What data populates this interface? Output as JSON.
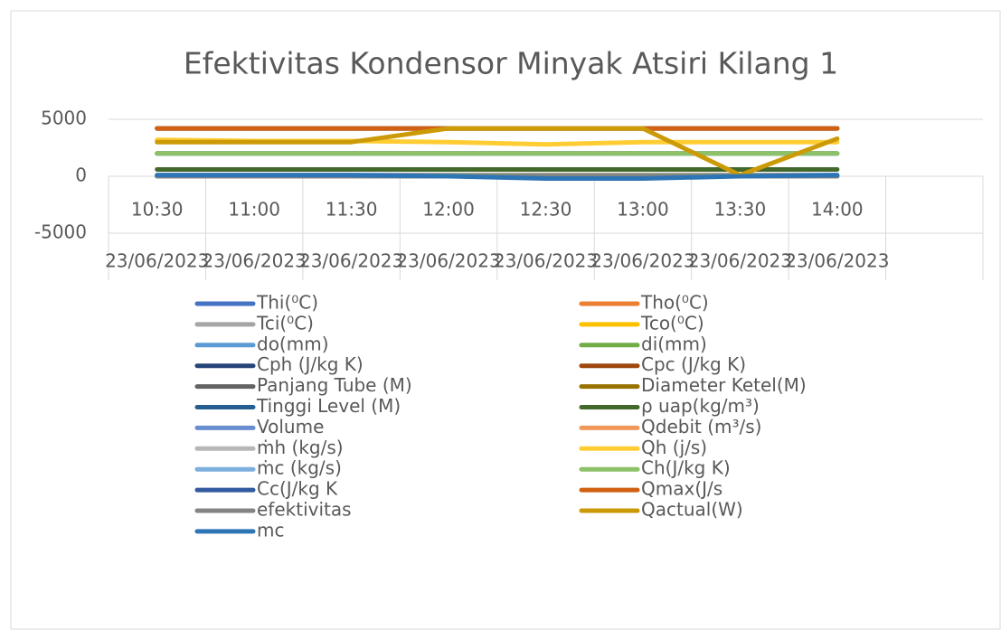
{
  "chart_data": {
    "type": "line",
    "title": "Efektivitas Kondensor  Minyak Atsiri Kilang 1",
    "categories": [
      "10:30",
      "11:00",
      "11:30",
      "12:00",
      "12:30",
      "13:00",
      "13:30",
      "14:00",
      null
    ],
    "category_groups": [
      "23/06/2023",
      "23/06/2023",
      "23/06/2023",
      "23/06/2023",
      "23/06/2023",
      "23/06/2023",
      "23/06/2023",
      "23/06/2023",
      null
    ],
    "ylim": [
      -5000,
      5000
    ],
    "yticks": [
      -5000,
      0,
      5000
    ],
    "grid": true,
    "legend": "bottom",
    "series": [
      {
        "name": "Thi(⁰C)",
        "color": "#4472c4",
        "values": [
          95,
          95,
          95,
          95,
          95,
          95,
          95,
          95,
          null
        ]
      },
      {
        "name": "Tho(⁰C)",
        "color": "#ed7d31",
        "values": [
          60,
          60,
          60,
          60,
          60,
          60,
          60,
          60,
          null
        ]
      },
      {
        "name": "Tci(⁰C)",
        "color": "#a5a5a5",
        "values": [
          30,
          30,
          30,
          30,
          30,
          30,
          30,
          30,
          null
        ]
      },
      {
        "name": "Tco(⁰C)",
        "color": "#ffc000",
        "values": [
          45,
          45,
          45,
          45,
          45,
          45,
          45,
          45,
          null
        ]
      },
      {
        "name": "do(mm)",
        "color": "#5b9bd5",
        "values": [
          25,
          25,
          25,
          25,
          25,
          25,
          25,
          25,
          null
        ]
      },
      {
        "name": "di(mm)",
        "color": "#70ad47",
        "values": [
          22,
          22,
          22,
          22,
          22,
          22,
          22,
          22,
          null
        ]
      },
      {
        "name": "Cph (J/kg K)",
        "color": "#264478",
        "values": [
          2000,
          2000,
          2000,
          2000,
          2000,
          2000,
          2000,
          2000,
          null
        ]
      },
      {
        "name": "Cpc (J/kg K)",
        "color": "#9e480e",
        "values": [
          4200,
          4200,
          4200,
          4200,
          4200,
          4200,
          4200,
          4200,
          null
        ]
      },
      {
        "name": "Panjang Tube (M)",
        "color": "#636363",
        "values": [
          2,
          2,
          2,
          2,
          2,
          2,
          2,
          2,
          null
        ]
      },
      {
        "name": "Diameter Ketel(M)",
        "color": "#997300",
        "values": [
          1,
          1,
          1,
          1,
          1,
          1,
          1,
          1,
          null
        ]
      },
      {
        "name": "Tinggi Level (M)",
        "color": "#255e91",
        "values": [
          1.5,
          1.5,
          1.5,
          1.5,
          1.5,
          1.5,
          1.5,
          1.5,
          null
        ]
      },
      {
        "name": "ρ uap(kg/m³)",
        "color": "#43682b",
        "values": [
          600,
          600,
          600,
          600,
          600,
          600,
          600,
          600,
          null
        ]
      },
      {
        "name": "Volume",
        "color": "#698ed0",
        "values": [
          2,
          2,
          2,
          2,
          2,
          2,
          2,
          2,
          null
        ]
      },
      {
        "name": "Qdebit (m³/s)",
        "color": "#f1975a",
        "values": [
          0,
          0,
          0,
          0,
          0,
          0,
          0,
          0,
          null
        ]
      },
      {
        "name": "ṁh (kg/s)",
        "color": "#b7b7b7",
        "values": [
          0,
          0,
          0,
          0,
          0,
          0,
          0,
          0,
          null
        ]
      },
      {
        "name": "Qh (j/s)",
        "color": "#ffcd33",
        "values": [
          3200,
          3100,
          3100,
          3000,
          2800,
          3000,
          3000,
          3000,
          null
        ]
      },
      {
        "name": "ṁc (kg/s)",
        "color": "#7cafdd",
        "values": [
          0,
          0,
          0,
          0,
          0,
          0,
          0,
          0,
          null
        ]
      },
      {
        "name": "Ch(J/kg K)",
        "color": "#8cc168",
        "values": [
          2000,
          2000,
          2000,
          2000,
          2000,
          2000,
          2000,
          2000,
          null
        ]
      },
      {
        "name": "Cc(J/kg K",
        "color": "#335aa1",
        "values": [
          4200,
          4200,
          4200,
          4200,
          4200,
          4200,
          4200,
          4200,
          null
        ]
      },
      {
        "name": "Qmax(J/s",
        "color": "#d26012",
        "values": [
          4200,
          4200,
          4200,
          4200,
          4200,
          4200,
          4200,
          4200,
          null
        ]
      },
      {
        "name": "efektivitas",
        "color": "#848484",
        "values": [
          0,
          0,
          0,
          0,
          0,
          0,
          0,
          0,
          null
        ]
      },
      {
        "name": "Qactual(W)",
        "color": "#cc9a06",
        "values": [
          3000,
          3000,
          3000,
          4200,
          4200,
          4200,
          100,
          3300,
          null
        ]
      },
      {
        "name": "mc",
        "color": "#2e75b6",
        "values": [
          100,
          100,
          100,
          0,
          -200,
          -200,
          0,
          100,
          null
        ]
      }
    ]
  }
}
